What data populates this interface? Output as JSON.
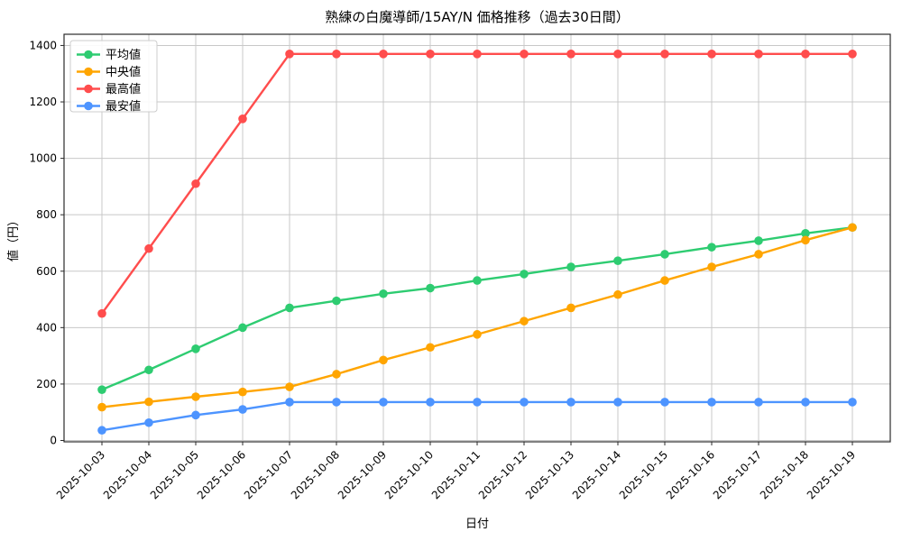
{
  "chart_data": {
    "type": "line",
    "title": "熟練の白魔導師/15AY/N 価格推移（過去30日間）",
    "xlabel": "日付",
    "ylabel": "値（円）",
    "ylim": [
      0,
      1400
    ],
    "yticks": [
      0,
      200,
      400,
      600,
      800,
      1000,
      1200,
      1400
    ],
    "grid": true,
    "legend_position": "upper-left",
    "categories": [
      "2025-10-03",
      "2025-10-04",
      "2025-10-05",
      "2025-10-06",
      "2025-10-07",
      "2025-10-08",
      "2025-10-09",
      "2025-10-10",
      "2025-10-11",
      "2025-10-12",
      "2025-10-13",
      "2025-10-14",
      "2025-10-15",
      "2025-10-16",
      "2025-10-17",
      "2025-10-18",
      "2025-10-19"
    ],
    "series": [
      {
        "key": "average",
        "name": "平均値",
        "color": "#2ecc71",
        "values": [
          180,
          250,
          325,
          400,
          470,
          495,
          520,
          540,
          567,
          590,
          615,
          637,
          660,
          685,
          708,
          734,
          755
        ]
      },
      {
        "key": "median",
        "name": "中央値",
        "color": "#ffa500",
        "values": [
          118,
          137,
          155,
          172,
          190,
          235,
          285,
          330,
          376,
          423,
          470,
          517,
          567,
          615,
          660,
          710,
          755
        ]
      },
      {
        "key": "max",
        "name": "最高値",
        "color": "#ff4d4d",
        "values": [
          450,
          680,
          910,
          1140,
          1370,
          1370,
          1370,
          1370,
          1370,
          1370,
          1370,
          1370,
          1370,
          1370,
          1370,
          1370,
          1370
        ]
      },
      {
        "key": "min",
        "name": "最安値",
        "color": "#4d94ff",
        "values": [
          36,
          63,
          90,
          110,
          136,
          136,
          136,
          136,
          136,
          136,
          136,
          136,
          136,
          136,
          136,
          136,
          136
        ]
      }
    ],
    "colors": {
      "grid": "#c8c8c8",
      "spine": "#2b2b2b",
      "legend_border": "#cccccc",
      "legend_bg": "#ffffff"
    }
  }
}
